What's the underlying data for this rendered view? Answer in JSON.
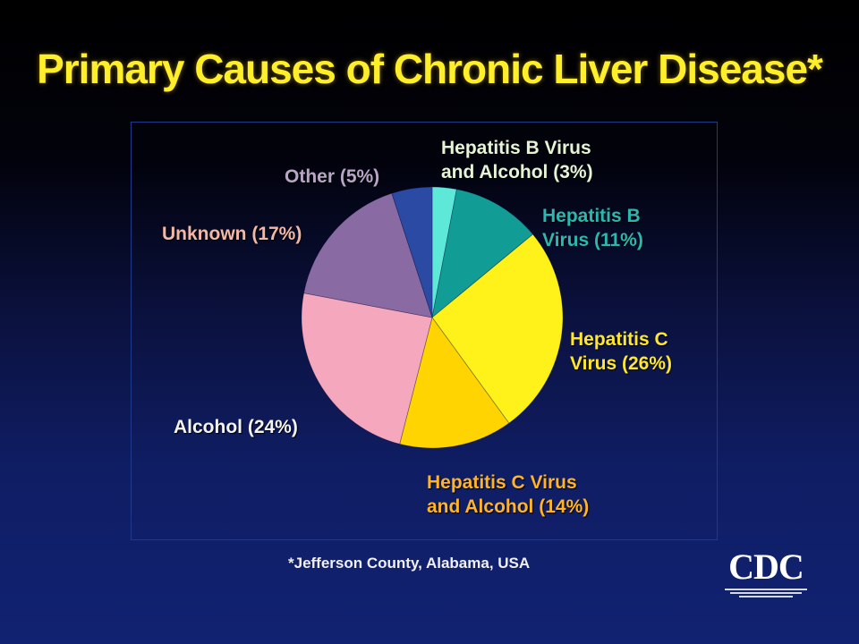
{
  "chart_data": {
    "type": "pie",
    "title": "Primary Causes of Chronic Liver Disease*",
    "footnote": "*Jefferson County, Alabama, USA",
    "slices": [
      {
        "label_lines": [
          "Hepatitis B Virus",
          "and Alcohol (3%)"
        ],
        "value": 3,
        "color": "#5ee8d8",
        "label_color": "#e6f4d6"
      },
      {
        "label_lines": [
          "Hepatitis B",
          "Virus (11%)"
        ],
        "value": 11,
        "color": "#129c96",
        "label_color": "#2bb8b0"
      },
      {
        "label_lines": [
          "Hepatitis C",
          "Virus (26%)"
        ],
        "value": 26,
        "color": "#fff21a",
        "label_color": "#ffe82a"
      },
      {
        "label_lines": [
          "Hepatitis C Virus",
          "and Alcohol (14%)"
        ],
        "value": 14,
        "color": "#ffd400",
        "label_color": "#ffb428"
      },
      {
        "label_lines": [
          "Alcohol (24%)"
        ],
        "value": 24,
        "color": "#f4a7bd",
        "label_color": "#f4f4f4"
      },
      {
        "label_lines": [
          "Unknown (17%)"
        ],
        "value": 17,
        "color": "#8a6aa2",
        "label_color": "#f3b7a6"
      },
      {
        "label_lines": [
          "Other (5%)"
        ],
        "value": 5,
        "color": "#2a4aa4",
        "label_color": "#b9a6c6"
      }
    ]
  },
  "logo": {
    "text": "CDC"
  }
}
